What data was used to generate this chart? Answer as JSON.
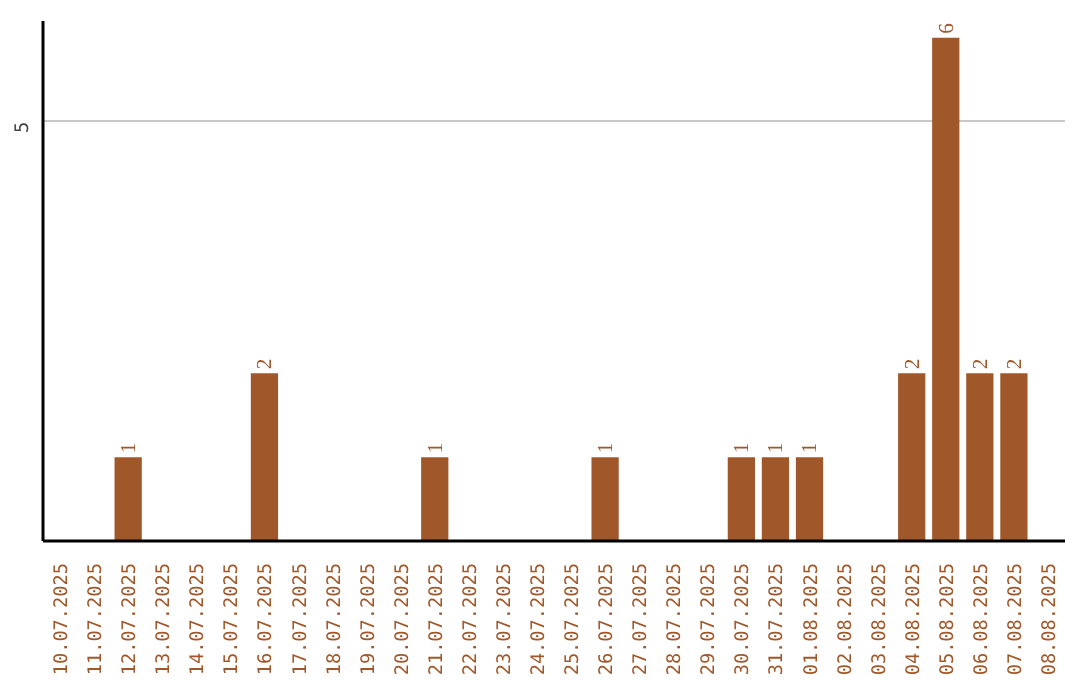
{
  "chart_data": {
    "type": "bar",
    "categories": [
      "10.07.2025",
      "11.07.2025",
      "12.07.2025",
      "13.07.2025",
      "14.07.2025",
      "15.07.2025",
      "16.07.2025",
      "17.07.2025",
      "18.07.2025",
      "19.07.2025",
      "20.07.2025",
      "21.07.2025",
      "22.07.2025",
      "23.07.2025",
      "24.07.2025",
      "25.07.2025",
      "26.07.2025",
      "27.07.2025",
      "28.07.2025",
      "29.07.2025",
      "30.07.2025",
      "31.07.2025",
      "01.08.2025",
      "02.08.2025",
      "03.08.2025",
      "04.08.2025",
      "05.08.2025",
      "06.08.2025",
      "07.08.2025",
      "08.08.2025"
    ],
    "values": [
      0,
      0,
      1,
      0,
      0,
      0,
      2,
      0,
      0,
      0,
      0,
      1,
      0,
      0,
      0,
      0,
      1,
      0,
      0,
      0,
      1,
      1,
      1,
      0,
      0,
      2,
      6,
      2,
      2,
      0
    ],
    "value_labels": [
      null,
      null,
      "1",
      null,
      null,
      null,
      "2",
      null,
      null,
      null,
      null,
      "1",
      null,
      null,
      null,
      null,
      "1",
      null,
      null,
      null,
      "1",
      "1",
      "1",
      null,
      null,
      "2",
      "6",
      "2",
      "2",
      null
    ],
    "color": "#a0582a",
    "ylim": [
      0,
      6.2
    ],
    "yticks": [
      5
    ],
    "grid": "y"
  }
}
